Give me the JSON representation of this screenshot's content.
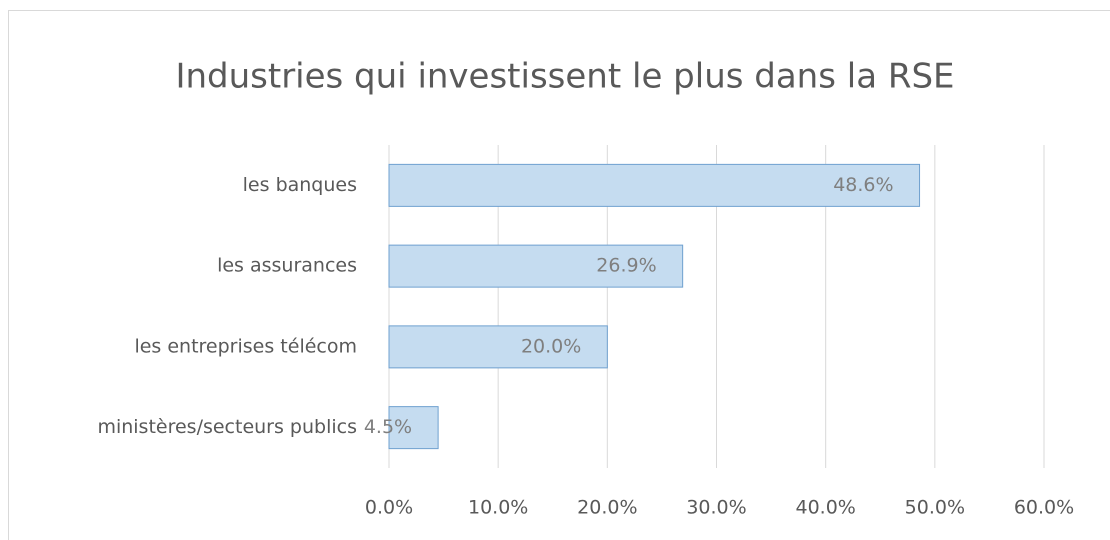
{
  "chart_data": {
    "type": "bar",
    "orientation": "horizontal",
    "title": "Industries qui investissent le plus dans la RSE",
    "categories": [
      "les banques",
      "les assurances",
      "les entreprises télécom",
      "ministères/secteurs publics"
    ],
    "values": [
      48.6,
      26.9,
      20.0,
      4.5
    ],
    "value_labels": [
      "48.6%",
      "26.9%",
      "20.0%",
      "4.5%"
    ],
    "color": "#c5dcf0",
    "xlim": [
      0,
      60
    ],
    "xticks": [
      {
        "value": 0,
        "label": "0.0%"
      },
      {
        "value": 10,
        "label": "10.0%"
      },
      {
        "value": 20,
        "label": "20.0%"
      },
      {
        "value": 30,
        "label": "30.0%"
      },
      {
        "value": 40,
        "label": "40.0%"
      },
      {
        "value": 50,
        "label": "50.0%"
      },
      {
        "value": 60,
        "label": "60.0%"
      }
    ],
    "grid": true
  }
}
